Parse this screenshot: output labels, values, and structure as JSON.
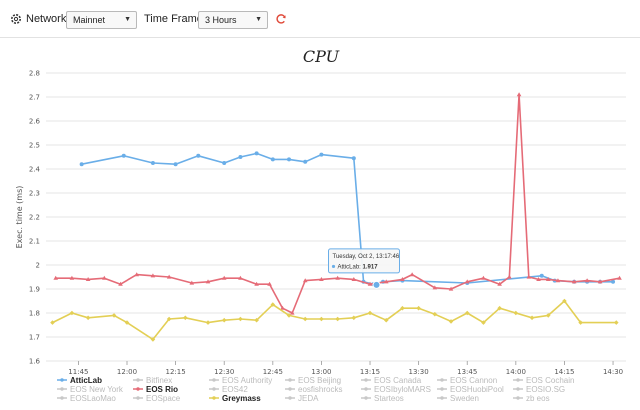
{
  "toolbar": {
    "network_label": "Network:",
    "network_value": "Mainnet",
    "timeframe_label": "Time Frame:",
    "timeframe_value": "3 Hours"
  },
  "colors": {
    "atticlab": "#6aaee8",
    "eos_rio": "#e56b77",
    "greymass": "#e3cf55",
    "disabled": "#c8c8c8"
  },
  "chart_data": {
    "type": "line",
    "title": "CPU",
    "ylabel": "Exec. time (ms)",
    "xlabel": "",
    "ylim": [
      1.6,
      2.8
    ],
    "yticks": [
      "1.6",
      "1.7",
      "1.8",
      "1.9",
      "2",
      "2.1",
      "2.2",
      "2.3",
      "2.4",
      "2.5",
      "2.6",
      "2.7",
      "2.8"
    ],
    "xticks": [
      "11:45",
      "12:00",
      "12:15",
      "12:30",
      "12:45",
      "13:00",
      "13:15",
      "13:30",
      "13:45",
      "14:00",
      "14:15",
      "14:30"
    ],
    "xticks_min": [
      705,
      720,
      735,
      750,
      765,
      780,
      795,
      810,
      825,
      840,
      855,
      870
    ],
    "xlim_min": [
      695,
      874
    ],
    "series": [
      {
        "name": "AtticLab",
        "color": "#6aaee8",
        "x_min": [
          706,
          719,
          728,
          735,
          742,
          750,
          755,
          760,
          765,
          770,
          775,
          780,
          790,
          793,
          796,
          799,
          805,
          825,
          848,
          852,
          858,
          862,
          866,
          870
        ],
        "values": [
          2.42,
          2.455,
          2.425,
          2.42,
          2.455,
          2.425,
          2.45,
          2.465,
          2.44,
          2.44,
          2.43,
          2.46,
          2.445,
          1.93,
          1.92,
          1.93,
          1.935,
          1.925,
          1.955,
          1.935,
          1.93,
          1.93,
          1.93,
          1.93
        ]
      },
      {
        "name": "EOS Rio",
        "color": "#e56b77",
        "x_min": [
          698,
          703,
          708,
          713,
          718,
          723,
          728,
          733,
          740,
          745,
          750,
          755,
          760,
          764,
          768,
          771,
          775,
          780,
          785,
          790,
          795,
          800,
          805,
          808,
          815,
          820,
          825,
          830,
          835,
          838,
          841,
          844,
          847,
          850,
          853,
          858,
          862,
          866,
          872
        ],
        "values": [
          1.945,
          1.945,
          1.94,
          1.945,
          1.92,
          1.96,
          1.955,
          1.95,
          1.925,
          1.93,
          1.945,
          1.945,
          1.92,
          1.92,
          1.82,
          1.8,
          1.935,
          1.94,
          1.945,
          1.94,
          1.92,
          1.93,
          1.94,
          1.96,
          1.905,
          1.9,
          1.93,
          1.945,
          1.92,
          1.95,
          2.71,
          1.95,
          1.94,
          1.94,
          1.935,
          1.93,
          1.935,
          1.93,
          1.945
        ]
      },
      {
        "name": "Greymass",
        "color": "#e3cf55",
        "x_min": [
          697,
          703,
          708,
          716,
          720,
          728,
          733,
          738,
          745,
          750,
          755,
          760,
          765,
          770,
          775,
          780,
          785,
          790,
          795,
          800,
          805,
          810,
          815,
          820,
          825,
          830,
          835,
          840,
          845,
          850,
          855,
          860,
          871
        ],
        "values": [
          1.76,
          1.8,
          1.78,
          1.79,
          1.76,
          1.69,
          1.775,
          1.78,
          1.76,
          1.77,
          1.775,
          1.77,
          1.835,
          1.79,
          1.775,
          1.775,
          1.775,
          1.78,
          1.8,
          1.77,
          1.82,
          1.82,
          1.795,
          1.765,
          1.8,
          1.76,
          1.82,
          1.8,
          1.78,
          1.79,
          1.85,
          1.76,
          1.76
        ]
      }
    ],
    "tooltip": {
      "header": "Tuesday, Oct 2, 13:17:46",
      "series": "AtticLab:",
      "value": "1.917"
    },
    "legend": [
      [
        {
          "name": "AtticLab",
          "on": true,
          "color": "#6aaee8"
        },
        {
          "name": "Bitfinex",
          "on": false
        },
        {
          "name": "EOS Authority",
          "on": false
        },
        {
          "name": "EOS Beijing",
          "on": false
        },
        {
          "name": "EOS Canada",
          "on": false
        },
        {
          "name": "EOS Cannon",
          "on": false
        },
        {
          "name": "EOS Cochain",
          "on": false
        }
      ],
      [
        {
          "name": "EOS New York",
          "on": false
        },
        {
          "name": "EOS Rio",
          "on": true,
          "color": "#e56b77"
        },
        {
          "name": "EOS42",
          "on": false
        },
        {
          "name": "eosfishrocks",
          "on": false
        },
        {
          "name": "EOSIbyloMARS",
          "on": false
        },
        {
          "name": "EOSHuobiPool",
          "on": false
        },
        {
          "name": "EOSIO.SG",
          "on": false
        }
      ],
      [
        {
          "name": "EOSLaoMao",
          "on": false
        },
        {
          "name": "EOSpace",
          "on": false
        },
        {
          "name": "Greymass",
          "on": true,
          "color": "#e3cf55"
        },
        {
          "name": "JEDA",
          "on": false
        },
        {
          "name": "Starteos",
          "on": false
        },
        {
          "name": "Sweden",
          "on": false
        },
        {
          "name": "zb eos",
          "on": false
        }
      ]
    ]
  }
}
